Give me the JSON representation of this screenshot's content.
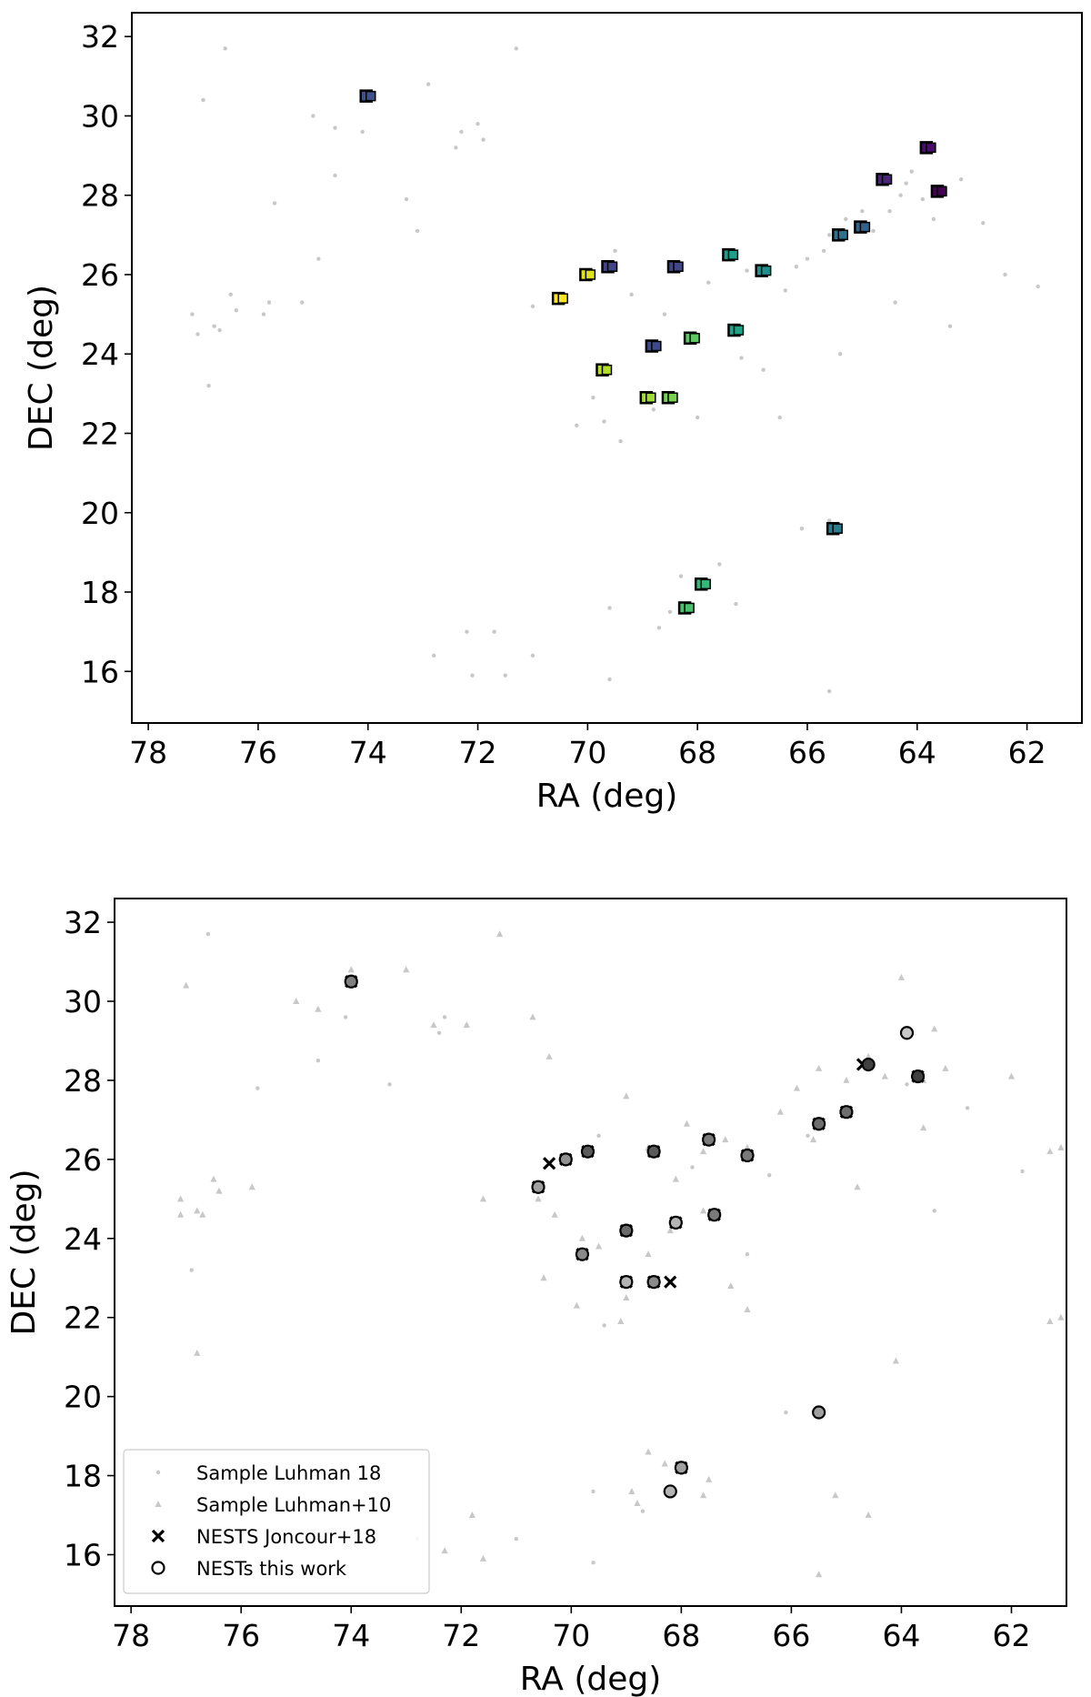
{
  "chart_data": [
    {
      "type": "scatter",
      "title": "",
      "xlabel": "RA (deg)",
      "ylabel": "DEC (deg)",
      "xlim": [
        78.3,
        61.0
      ],
      "ylim": [
        14.7,
        32.6
      ],
      "x_ticks": [
        78,
        76,
        74,
        72,
        70,
        68,
        66,
        64,
        62
      ],
      "y_ticks": [
        16,
        18,
        20,
        22,
        24,
        26,
        28,
        30,
        32
      ],
      "grid": false,
      "series": [
        {
          "role": "background",
          "marker": "dot",
          "color": "#c8c8c8",
          "points": [
            [
              76.6,
              31.7
            ],
            [
              74.0,
              30.5
            ],
            [
              72.9,
              30.8
            ],
            [
              71.3,
              31.7
            ],
            [
              75.0,
              30.0
            ],
            [
              74.6,
              29.7
            ],
            [
              74.1,
              29.6
            ],
            [
              72.3,
              29.6
            ],
            [
              71.9,
              29.4
            ],
            [
              72.0,
              29.8
            ],
            [
              74.6,
              28.5
            ],
            [
              72.4,
              29.2
            ],
            [
              73.3,
              27.9
            ],
            [
              75.7,
              27.8
            ],
            [
              77.0,
              30.4
            ],
            [
              77.2,
              25.0
            ],
            [
              76.8,
              24.7
            ],
            [
              76.5,
              25.5
            ],
            [
              75.8,
              25.3
            ],
            [
              76.4,
              25.1
            ],
            [
              76.7,
              24.6
            ],
            [
              75.2,
              25.3
            ],
            [
              76.9,
              23.2
            ],
            [
              77.1,
              24.5
            ],
            [
              75.9,
              25.0
            ],
            [
              74.9,
              26.4
            ],
            [
              73.1,
              27.1
            ],
            [
              71.0,
              25.2
            ],
            [
              69.5,
              26.6
            ],
            [
              69.9,
              22.9
            ],
            [
              69.7,
              22.3
            ],
            [
              69.2,
              25.5
            ],
            [
              68.6,
              25.0
            ],
            [
              67.8,
              25.8
            ],
            [
              67.1,
              26.1
            ],
            [
              66.4,
              25.6
            ],
            [
              66.2,
              26.2
            ],
            [
              66.0,
              26.4
            ],
            [
              65.7,
              26.6
            ],
            [
              65.6,
              27.0
            ],
            [
              65.3,
              27.4
            ],
            [
              65.0,
              27.6
            ],
            [
              64.8,
              27.1
            ],
            [
              64.5,
              27.6
            ],
            [
              64.3,
              28.0
            ],
            [
              64.2,
              28.3
            ],
            [
              63.9,
              27.9
            ],
            [
              63.7,
              27.4
            ],
            [
              63.5,
              28.2
            ],
            [
              64.1,
              28.6
            ],
            [
              63.2,
              28.4
            ],
            [
              62.8,
              27.3
            ],
            [
              61.8,
              25.7
            ],
            [
              62.4,
              26.0
            ],
            [
              63.4,
              24.7
            ],
            [
              64.4,
              25.3
            ],
            [
              65.4,
              24.0
            ],
            [
              66.8,
              23.6
            ],
            [
              66.5,
              22.4
            ],
            [
              67.2,
              23.9
            ],
            [
              68.0,
              22.4
            ],
            [
              68.8,
              22.6
            ],
            [
              69.4,
              21.8
            ],
            [
              70.2,
              22.2
            ],
            [
              66.1,
              19.6
            ],
            [
              65.6,
              19.8
            ],
            [
              68.3,
              18.4
            ],
            [
              67.6,
              18.7
            ],
            [
              67.3,
              17.7
            ],
            [
              68.5,
              17.5
            ],
            [
              69.6,
              17.6
            ],
            [
              72.2,
              17.0
            ],
            [
              71.7,
              17.0
            ],
            [
              72.8,
              16.4
            ],
            [
              71.0,
              16.4
            ],
            [
              71.5,
              15.9
            ],
            [
              69.6,
              15.8
            ],
            [
              65.6,
              15.5
            ],
            [
              72.1,
              15.9
            ],
            [
              68.7,
              17.1
            ]
          ]
        },
        {
          "role": "nests",
          "marker": "square",
          "points": [
            {
              "x": 74.0,
              "y": 30.5,
              "color": "#3b528b"
            },
            {
              "x": 63.8,
              "y": 29.2,
              "color": "#4b0c6b"
            },
            {
              "x": 64.6,
              "y": 28.4,
              "color": "#482677"
            },
            {
              "x": 63.6,
              "y": 28.1,
              "color": "#440154"
            },
            {
              "x": 65.4,
              "y": 27.0,
              "color": "#2c728e"
            },
            {
              "x": 65.0,
              "y": 27.2,
              "color": "#33638d"
            },
            {
              "x": 67.4,
              "y": 26.5,
              "color": "#1f9e89"
            },
            {
              "x": 66.8,
              "y": 26.1,
              "color": "#21908d"
            },
            {
              "x": 68.4,
              "y": 26.2,
              "color": "#404688"
            },
            {
              "x": 69.6,
              "y": 26.2,
              "color": "#414487"
            },
            {
              "x": 70.0,
              "y": 26.0,
              "color": "#dde318"
            },
            {
              "x": 70.5,
              "y": 25.4,
              "color": "#fde725"
            },
            {
              "x": 67.3,
              "y": 24.6,
              "color": "#20a386"
            },
            {
              "x": 68.1,
              "y": 24.4,
              "color": "#5ec962"
            },
            {
              "x": 68.8,
              "y": 24.2,
              "color": "#3e4989"
            },
            {
              "x": 69.7,
              "y": 23.6,
              "color": "#b5de2b"
            },
            {
              "x": 68.9,
              "y": 22.9,
              "color": "#a2da37"
            },
            {
              "x": 68.5,
              "y": 22.9,
              "color": "#7ad151"
            },
            {
              "x": 65.5,
              "y": 19.6,
              "color": "#287d8e"
            },
            {
              "x": 67.9,
              "y": 18.2,
              "color": "#35b779"
            },
            {
              "x": 68.2,
              "y": 17.6,
              "color": "#4ac16d"
            }
          ]
        }
      ]
    },
    {
      "type": "scatter",
      "title": "",
      "xlabel": "RA (deg)",
      "ylabel": "DEC (deg)",
      "xlim": [
        78.3,
        61.0
      ],
      "ylim": [
        14.7,
        32.6
      ],
      "x_ticks": [
        78,
        76,
        74,
        72,
        70,
        68,
        66,
        64,
        62
      ],
      "y_ticks": [
        16,
        18,
        20,
        22,
        24,
        26,
        28,
        30,
        32
      ],
      "grid": false,
      "legend_position": "bottom-left",
      "series": [
        {
          "name": "Sample Luhman 18",
          "marker": "dot",
          "color": "#c8c8c8",
          "points": [
            [
              76.6,
              31.7
            ],
            [
              74.1,
              29.6
            ],
            [
              72.3,
              29.6
            ],
            [
              71.9,
              29.4
            ],
            [
              74.6,
              28.5
            ],
            [
              75.7,
              27.8
            ],
            [
              76.9,
              23.2
            ],
            [
              73.3,
              27.9
            ],
            [
              72.4,
              29.2
            ],
            [
              69.5,
              26.6
            ],
            [
              67.8,
              25.8
            ],
            [
              66.4,
              25.6
            ],
            [
              65.7,
              26.6
            ],
            [
              63.9,
              27.9
            ],
            [
              62.8,
              27.3
            ],
            [
              61.8,
              25.7
            ],
            [
              63.4,
              24.7
            ],
            [
              66.8,
              23.6
            ],
            [
              69.4,
              21.8
            ],
            [
              66.1,
              19.6
            ],
            [
              69.6,
              17.6
            ],
            [
              72.8,
              16.4
            ],
            [
              71.0,
              16.4
            ],
            [
              69.6,
              15.8
            ],
            [
              68.7,
              17.1
            ]
          ]
        },
        {
          "name": "Sample Luhman+10",
          "marker": "triangle",
          "color": "#c8c8c8",
          "points": [
            [
              74.0,
              30.8
            ],
            [
              73.0,
              30.8
            ],
            [
              71.3,
              31.7
            ],
            [
              75.0,
              30.0
            ],
            [
              74.6,
              29.8
            ],
            [
              71.9,
              29.4
            ],
            [
              77.0,
              30.4
            ],
            [
              70.7,
              29.6
            ],
            [
              70.4,
              28.6
            ],
            [
              77.1,
              25.0
            ],
            [
              76.8,
              24.7
            ],
            [
              76.5,
              25.5
            ],
            [
              75.8,
              25.3
            ],
            [
              76.4,
              25.2
            ],
            [
              76.7,
              24.6
            ],
            [
              77.1,
              24.6
            ],
            [
              76.8,
              21.1
            ],
            [
              72.5,
              29.4
            ],
            [
              71.6,
              25.0
            ],
            [
              70.6,
              25.0
            ],
            [
              70.3,
              24.6
            ],
            [
              69.8,
              24.0
            ],
            [
              69.5,
              23.8
            ],
            [
              70.5,
              23.0
            ],
            [
              69.9,
              22.3
            ],
            [
              69.0,
              22.5
            ],
            [
              69.1,
              21.9
            ],
            [
              69.0,
              27.6
            ],
            [
              68.6,
              26.3
            ],
            [
              68.1,
              25.5
            ],
            [
              67.9,
              26.9
            ],
            [
              67.6,
              26.2
            ],
            [
              67.2,
              26.5
            ],
            [
              66.8,
              26.3
            ],
            [
              66.2,
              27.2
            ],
            [
              65.9,
              27.8
            ],
            [
              65.5,
              28.3
            ],
            [
              65.0,
              28.0
            ],
            [
              64.6,
              28.6
            ],
            [
              64.3,
              28.1
            ],
            [
              63.6,
              28.0
            ],
            [
              63.4,
              29.3
            ],
            [
              63.2,
              28.3
            ],
            [
              64.0,
              30.6
            ],
            [
              62.0,
              28.1
            ],
            [
              67.6,
              24.7
            ],
            [
              68.2,
              24.2
            ],
            [
              68.6,
              23.6
            ],
            [
              67.1,
              22.8
            ],
            [
              66.8,
              22.2
            ],
            [
              65.6,
              26.5
            ],
            [
              64.8,
              25.3
            ],
            [
              63.6,
              26.8
            ],
            [
              61.3,
              21.9
            ],
            [
              61.1,
              22.0
            ],
            [
              64.1,
              20.9
            ],
            [
              68.6,
              18.6
            ],
            [
              68.3,
              18.3
            ],
            [
              68.9,
              17.6
            ],
            [
              67.5,
              17.9
            ],
            [
              67.6,
              17.5
            ],
            [
              68.8,
              17.3
            ],
            [
              71.8,
              17.0
            ],
            [
              72.3,
              16.1
            ],
            [
              71.6,
              15.9
            ],
            [
              65.5,
              15.5
            ],
            [
              65.2,
              17.5
            ],
            [
              64.6,
              17.0
            ],
            [
              61.1,
              26.3
            ],
            [
              61.3,
              26.2
            ]
          ]
        },
        {
          "name": "NESTS Joncour+18",
          "marker": "x",
          "color": "#000000",
          "points": [
            [
              74.0,
              30.5
            ],
            [
              64.7,
              28.4
            ],
            [
              63.7,
              28.1
            ],
            [
              65.5,
              26.9
            ],
            [
              65.0,
              27.2
            ],
            [
              67.5,
              26.5
            ],
            [
              66.8,
              26.1
            ],
            [
              68.5,
              26.2
            ],
            [
              69.7,
              26.2
            ],
            [
              70.1,
              26.0
            ],
            [
              70.4,
              25.9
            ],
            [
              70.6,
              25.3
            ],
            [
              67.4,
              24.6
            ],
            [
              68.1,
              24.4
            ],
            [
              69.0,
              24.2
            ],
            [
              69.8,
              23.6
            ],
            [
              69.0,
              22.9
            ],
            [
              68.5,
              22.9
            ],
            [
              68.2,
              22.9
            ],
            [
              68.0,
              18.2
            ]
          ]
        },
        {
          "name": "NESTs this work",
          "marker": "circle",
          "color": "#000000",
          "points": [
            {
              "x": 74.0,
              "y": 30.5,
              "fill": "#808080"
            },
            {
              "x": 63.9,
              "y": 29.2,
              "fill": "#c8c8c8"
            },
            {
              "x": 64.6,
              "y": 28.4,
              "fill": "#404040"
            },
            {
              "x": 63.7,
              "y": 28.1,
              "fill": "#404040"
            },
            {
              "x": 65.5,
              "y": 26.9,
              "fill": "#6e6e6e"
            },
            {
              "x": 65.0,
              "y": 27.2,
              "fill": "#6e6e6e"
            },
            {
              "x": 67.5,
              "y": 26.5,
              "fill": "#7a7a7a"
            },
            {
              "x": 66.8,
              "y": 26.1,
              "fill": "#7a7a7a"
            },
            {
              "x": 68.5,
              "y": 26.2,
              "fill": "#5a5a5a"
            },
            {
              "x": 69.7,
              "y": 26.2,
              "fill": "#5a5a5a"
            },
            {
              "x": 70.1,
              "y": 26.0,
              "fill": "#909090"
            },
            {
              "x": 70.6,
              "y": 25.3,
              "fill": "#a0a0a0"
            },
            {
              "x": 67.4,
              "y": 24.6,
              "fill": "#7a7a7a"
            },
            {
              "x": 68.1,
              "y": 24.4,
              "fill": "#b4b4b4"
            },
            {
              "x": 69.0,
              "y": 24.2,
              "fill": "#6a6a6a"
            },
            {
              "x": 69.8,
              "y": 23.6,
              "fill": "#8a8a8a"
            },
            {
              "x": 69.0,
              "y": 22.9,
              "fill": "#b4b4b4"
            },
            {
              "x": 68.5,
              "y": 22.9,
              "fill": "#8a8a8a"
            },
            {
              "x": 65.5,
              "y": 19.6,
              "fill": "#a0a0a0"
            },
            {
              "x": 68.0,
              "y": 18.2,
              "fill": "#a0a0a0"
            },
            {
              "x": 68.2,
              "y": 17.6,
              "fill": "#b4b4b4"
            }
          ]
        }
      ]
    }
  ]
}
